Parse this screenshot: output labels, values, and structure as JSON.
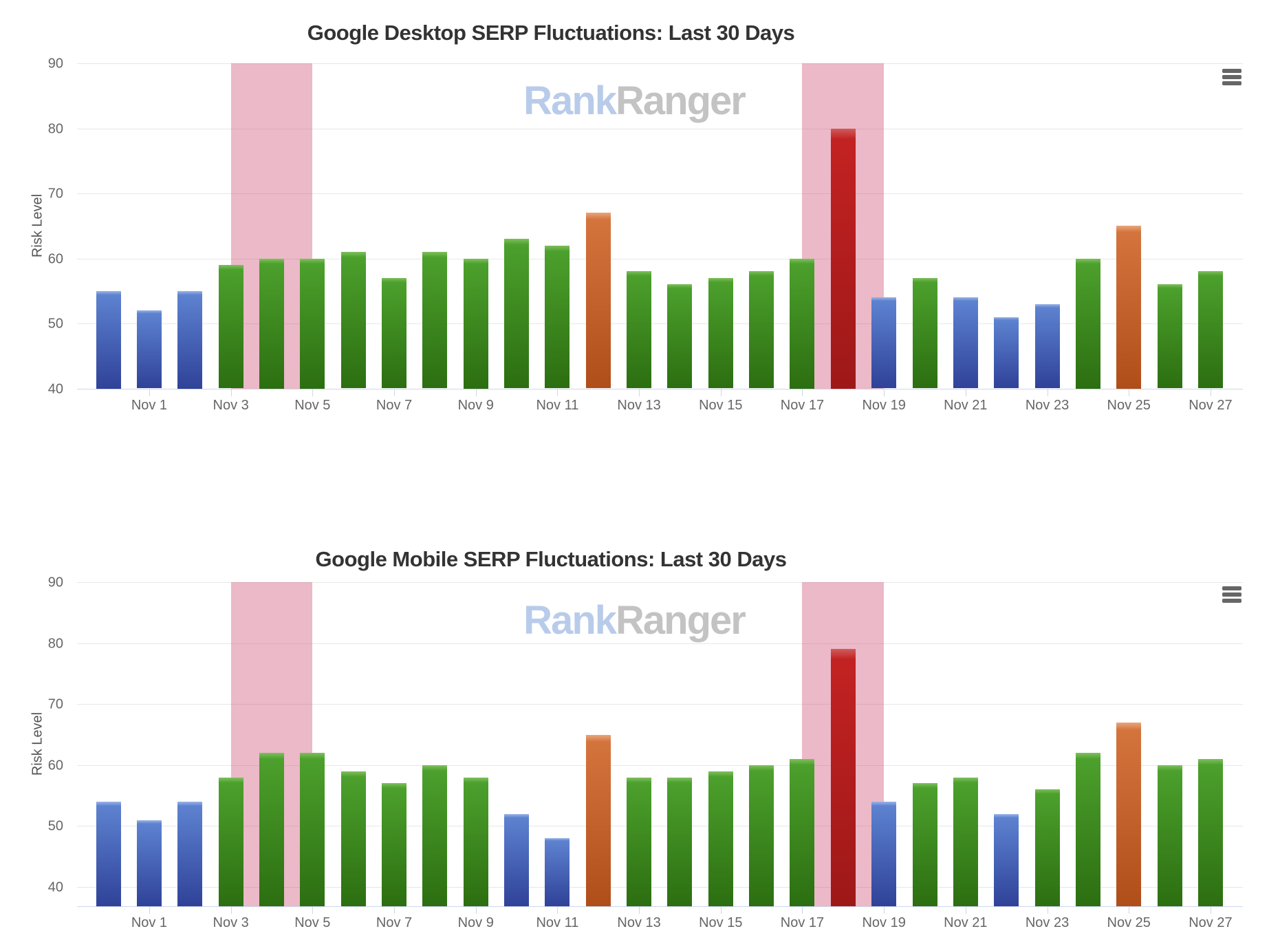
{
  "watermark": {
    "rank": "Rank",
    "ranger": "Ranger"
  },
  "palette": {
    "low": {
      "edge": "#9db5e6",
      "top": "#5d82d0",
      "bottom": "#2f4298"
    },
    "medium": {
      "edge": "#7fc05e",
      "top": "#4ca02c",
      "bottom": "#2c6e11"
    },
    "high": {
      "edge": "#e8a77c",
      "top": "#d4743d",
      "bottom": "#b04e1a"
    },
    "very_high": {
      "edge": "#d05c5c",
      "top": "#c32222",
      "bottom": "#9e1818"
    }
  },
  "plot_band_color": "rgba(205,80,115,0.4)",
  "axis_colors": {
    "line": "#ccd6eb",
    "grid": "#e7e7e7",
    "label": "#666666"
  },
  "charts": [
    {
      "title": "Google Desktop SERP Fluctuations: Last 30 Days",
      "y_axis_title": "Risk Level",
      "chart_data": {
        "type": "bar",
        "x": [
          "Oct 31",
          "Nov 1",
          "Nov 2",
          "Nov 3",
          "Nov 4",
          "Nov 5",
          "Nov 6",
          "Nov 7",
          "Nov 8",
          "Nov 9",
          "Nov 10",
          "Nov 11",
          "Nov 12",
          "Nov 13",
          "Nov 14",
          "Nov 15",
          "Nov 16",
          "Nov 17",
          "Nov 18",
          "Nov 19",
          "Nov 20",
          "Nov 21",
          "Nov 22",
          "Nov 23",
          "Nov 24",
          "Nov 25",
          "Nov 26",
          "Nov 27"
        ],
        "values": [
          55,
          52,
          55,
          59,
          60,
          60,
          61,
          57,
          61,
          60,
          63,
          62,
          67,
          58,
          56,
          57,
          58,
          60,
          80,
          54,
          57,
          54,
          51,
          53,
          60,
          65,
          56,
          58
        ],
        "risk_levels": [
          "low",
          "low",
          "low",
          "medium",
          "medium",
          "medium",
          "medium",
          "medium",
          "medium",
          "medium",
          "medium",
          "medium",
          "high",
          "medium",
          "medium",
          "medium",
          "medium",
          "medium",
          "very_high",
          "low",
          "medium",
          "low",
          "low",
          "low",
          "medium",
          "high",
          "medium",
          "medium"
        ],
        "xtick_labels": [
          "Nov 1",
          "Nov 3",
          "Nov 5",
          "Nov 7",
          "Nov 9",
          "Nov 11",
          "Nov 13",
          "Nov 15",
          "Nov 17",
          "Nov 19",
          "Nov 21",
          "Nov 23",
          "Nov 25",
          "Nov 27"
        ],
        "ylabel": "Risk Level",
        "ylim": [
          40,
          90
        ],
        "yticks": [
          40,
          50,
          60,
          70,
          80,
          90
        ],
        "grid": true,
        "legend": "none",
        "plot_bands": [
          {
            "from": "Nov 3",
            "to": "Nov 5"
          },
          {
            "from": "Nov 17",
            "to": "Nov 19"
          }
        ]
      }
    },
    {
      "title": "Google Mobile SERP Fluctuations: Last 30 Days",
      "y_axis_title": "Risk Level",
      "chart_data": {
        "type": "bar",
        "x": [
          "Oct 31",
          "Nov 1",
          "Nov 2",
          "Nov 3",
          "Nov 4",
          "Nov 5",
          "Nov 6",
          "Nov 7",
          "Nov 8",
          "Nov 9",
          "Nov 10",
          "Nov 11",
          "Nov 12",
          "Nov 13",
          "Nov 14",
          "Nov 15",
          "Nov 16",
          "Nov 17",
          "Nov 18",
          "Nov 19",
          "Nov 20",
          "Nov 21",
          "Nov 22",
          "Nov 23",
          "Nov 24",
          "Nov 25",
          "Nov 26",
          "Nov 27"
        ],
        "values": [
          54,
          51,
          54,
          58,
          62,
          62,
          59,
          57,
          60,
          58,
          52,
          48,
          65,
          58,
          58,
          59,
          60,
          61,
          79,
          54,
          57,
          58,
          52,
          56,
          62,
          67,
          60,
          61
        ],
        "risk_levels": [
          "low",
          "low",
          "low",
          "medium",
          "medium",
          "medium",
          "medium",
          "medium",
          "medium",
          "medium",
          "low",
          "low",
          "high",
          "medium",
          "medium",
          "medium",
          "medium",
          "medium",
          "very_high",
          "low",
          "medium",
          "medium",
          "low",
          "medium",
          "medium",
          "high",
          "medium",
          "medium"
        ],
        "xtick_labels": [
          "Nov 1",
          "Nov 3",
          "Nov 5",
          "Nov 7",
          "Nov 9",
          "Nov 11",
          "Nov 13",
          "Nov 15",
          "Nov 17",
          "Nov 19",
          "Nov 21",
          "Nov 23",
          "Nov 25",
          "Nov 27"
        ],
        "ylabel": "Risk Level",
        "ylim": [
          40,
          90
        ],
        "yticks": [
          40,
          50,
          60,
          70,
          80,
          90
        ],
        "grid": true,
        "legend": "none",
        "plot_bands": [
          {
            "from": "Nov 3",
            "to": "Nov 5"
          },
          {
            "from": "Nov 17",
            "to": "Nov 19"
          }
        ]
      }
    }
  ]
}
